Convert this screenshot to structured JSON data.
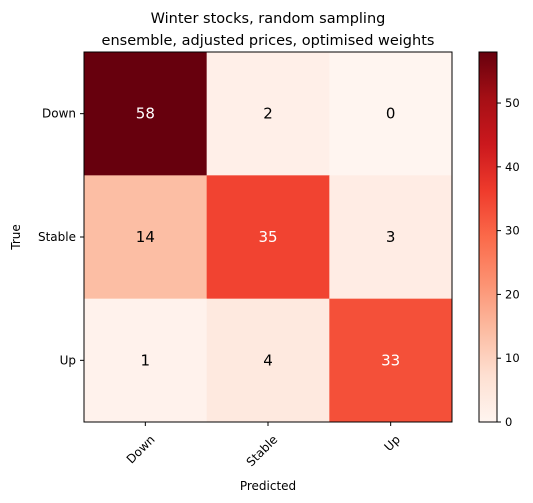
{
  "chart_data": {
    "type": "heatmap",
    "title_lines": [
      "Winter stocks, random sampling",
      "ensemble, adjusted prices, optimised weights"
    ],
    "xlabel": "Predicted",
    "ylabel": "True",
    "x_categories": [
      "Down",
      "Stable",
      "Up"
    ],
    "y_categories": [
      "Down",
      "Stable",
      "Up"
    ],
    "matrix": [
      [
        58,
        2,
        0
      ],
      [
        14,
        35,
        3
      ],
      [
        1,
        4,
        33
      ]
    ],
    "colormap": "Reds",
    "colorbar": {
      "range": [
        0,
        58
      ],
      "ticks": [
        0,
        10,
        20,
        30,
        40,
        50
      ]
    }
  }
}
